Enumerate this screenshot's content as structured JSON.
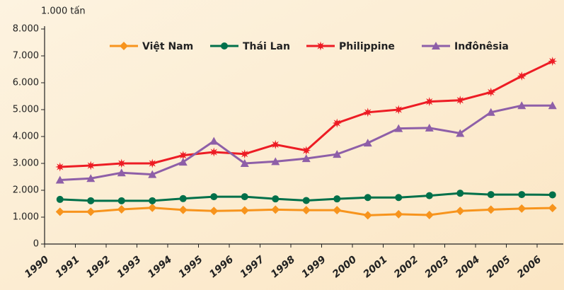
{
  "chart_data": {
    "type": "line",
    "y_label": "1.000 tấn",
    "categories": [
      "1990",
      "1991",
      "1992",
      "1993",
      "1994",
      "1995",
      "1996",
      "1997",
      "1998",
      "1999",
      "2000",
      "2001",
      "2002",
      "2003",
      "2004",
      "2005",
      "2006"
    ],
    "series": [
      {
        "name": "Việt Nam",
        "color": "#f7941d",
        "marker": "diamond",
        "values": [
          1200,
          1200,
          1290,
          1350,
          1270,
          1230,
          1250,
          1280,
          1260,
          1260,
          1070,
          1110,
          1080,
          1230,
          1280,
          1320,
          1340
        ]
      },
      {
        "name": "Thái Lan",
        "color": "#00704a",
        "marker": "circle",
        "values": [
          1660,
          1610,
          1610,
          1610,
          1690,
          1760,
          1760,
          1680,
          1620,
          1680,
          1730,
          1730,
          1800,
          1890,
          1840,
          1840,
          1830
        ]
      },
      {
        "name": "Philippine",
        "color": "#ed1c24",
        "marker": "star",
        "values": [
          2870,
          2920,
          3000,
          3000,
          3300,
          3420,
          3350,
          3700,
          3480,
          4500,
          4900,
          5000,
          5300,
          5350,
          5650,
          6250,
          6800
        ]
      },
      {
        "name": "Inđônêsia",
        "color": "#8e5fa8",
        "marker": "triangle",
        "values": [
          2380,
          2440,
          2650,
          2590,
          3050,
          3830,
          3000,
          3070,
          3180,
          3340,
          3760,
          4300,
          4320,
          4120,
          4900,
          5150,
          5150
        ]
      }
    ],
    "ylim": [
      0,
      8000
    ],
    "yticks": [
      0,
      {
        "value": 1000,
        "label": "1.000"
      },
      {
        "value": 2000,
        "label": "2.000"
      },
      {
        "value": 3000,
        "label": "3.000"
      },
      {
        "value": 4000,
        "label": "4.000"
      },
      {
        "value": 5000,
        "label": "5.000"
      },
      {
        "value": 6000,
        "label": "6.000"
      },
      {
        "value": 7000,
        "label": "7.000"
      },
      {
        "value": 8000,
        "label": "8.000"
      }
    ],
    "legend": "top"
  }
}
